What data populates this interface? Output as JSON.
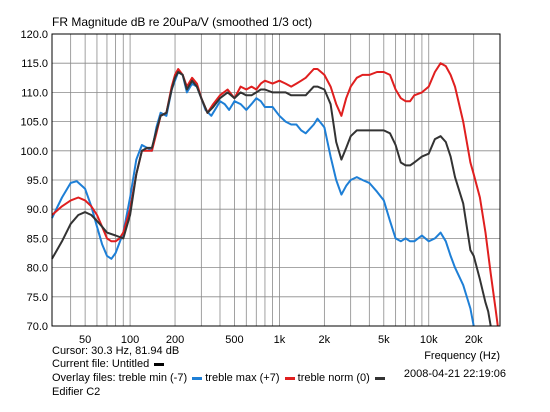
{
  "chart_data": {
    "type": "line",
    "title": "FR Magnitude dB re 20uPa/V (smoothed 1/3 oct)",
    "xlabel": "Frequency (Hz)",
    "ylabel": "",
    "x_scale": "log",
    "xlim": [
      30,
      30000
    ],
    "ylim": [
      70,
      120
    ],
    "grid": true,
    "x_ticks": [
      {
        "value": 50,
        "label": "50"
      },
      {
        "value": 100,
        "label": "100"
      },
      {
        "value": 200,
        "label": "200"
      },
      {
        "value": 500,
        "label": "500"
      },
      {
        "value": 1000,
        "label": "1k"
      },
      {
        "value": 2000,
        "label": "2k"
      },
      {
        "value": 5000,
        "label": "5k"
      },
      {
        "value": 10000,
        "label": "10k"
      },
      {
        "value": 20000,
        "label": "20k"
      }
    ],
    "y_ticks": [
      "120.0",
      "115.0",
      "110.0",
      "105.0",
      "100.0",
      "95.0",
      "90.0",
      "85.0",
      "80.0",
      "75.0",
      "70.0"
    ],
    "series": [
      {
        "name": "treble min (-7)",
        "color": "#1e7fd6",
        "points": [
          [
            30,
            88.5
          ],
          [
            35,
            92
          ],
          [
            40,
            94.5
          ],
          [
            44,
            94.8
          ],
          [
            50,
            93.5
          ],
          [
            55,
            90.5
          ],
          [
            60,
            87
          ],
          [
            65,
            84
          ],
          [
            70,
            82
          ],
          [
            75,
            81.5
          ],
          [
            80,
            82.5
          ],
          [
            90,
            86
          ],
          [
            100,
            92
          ],
          [
            110,
            98.5
          ],
          [
            120,
            101
          ],
          [
            130,
            100.5
          ],
          [
            140,
            100
          ],
          [
            150,
            104
          ],
          [
            160,
            106.5
          ],
          [
            175,
            106
          ],
          [
            190,
            110.5
          ],
          [
            200,
            112
          ],
          [
            210,
            113.5
          ],
          [
            225,
            113
          ],
          [
            240,
            110
          ],
          [
            260,
            111.5
          ],
          [
            280,
            111
          ],
          [
            300,
            109
          ],
          [
            320,
            107
          ],
          [
            350,
            106
          ],
          [
            380,
            107.5
          ],
          [
            400,
            108.5
          ],
          [
            430,
            108
          ],
          [
            460,
            107
          ],
          [
            500,
            108.5
          ],
          [
            550,
            108
          ],
          [
            600,
            107
          ],
          [
            650,
            108
          ],
          [
            700,
            109
          ],
          [
            750,
            108.5
          ],
          [
            800,
            107.5
          ],
          [
            900,
            107.5
          ],
          [
            1000,
            106
          ],
          [
            1100,
            105
          ],
          [
            1200,
            104.5
          ],
          [
            1300,
            104.5
          ],
          [
            1400,
            103.5
          ],
          [
            1500,
            103
          ],
          [
            1700,
            104.5
          ],
          [
            1800,
            105.5
          ],
          [
            2000,
            104
          ],
          [
            2200,
            99
          ],
          [
            2400,
            95
          ],
          [
            2600,
            92.5
          ],
          [
            2800,
            94
          ],
          [
            3000,
            95
          ],
          [
            3300,
            95.5
          ],
          [
            3600,
            95
          ],
          [
            4000,
            94.5
          ],
          [
            4500,
            93
          ],
          [
            5000,
            91.5
          ],
          [
            5500,
            88
          ],
          [
            6000,
            85
          ],
          [
            6500,
            84.5
          ],
          [
            7000,
            85
          ],
          [
            7500,
            84.5
          ],
          [
            8000,
            84.5
          ],
          [
            9000,
            85.5
          ],
          [
            10000,
            84.5
          ],
          [
            11000,
            85
          ],
          [
            12000,
            86
          ],
          [
            13000,
            84.5
          ],
          [
            14000,
            82
          ],
          [
            15000,
            80
          ],
          [
            17000,
            77
          ],
          [
            19000,
            73
          ],
          [
            20000,
            70
          ]
        ]
      },
      {
        "name": "treble max (+7)",
        "color": "#e01f1f",
        "points": [
          [
            30,
            89
          ],
          [
            35,
            90.5
          ],
          [
            40,
            91.5
          ],
          [
            45,
            92
          ],
          [
            50,
            91.5
          ],
          [
            55,
            90.5
          ],
          [
            60,
            89
          ],
          [
            65,
            87
          ],
          [
            70,
            85
          ],
          [
            75,
            84.5
          ],
          [
            80,
            84.5
          ],
          [
            85,
            85
          ],
          [
            90,
            86
          ],
          [
            100,
            90
          ],
          [
            110,
            96
          ],
          [
            120,
            100
          ],
          [
            130,
            100
          ],
          [
            140,
            100
          ],
          [
            150,
            103
          ],
          [
            160,
            106
          ],
          [
            175,
            106.5
          ],
          [
            190,
            111
          ],
          [
            200,
            113
          ],
          [
            210,
            114
          ],
          [
            225,
            113
          ],
          [
            240,
            111
          ],
          [
            260,
            112.5
          ],
          [
            280,
            111.5
          ],
          [
            300,
            109
          ],
          [
            330,
            106.5
          ],
          [
            360,
            108
          ],
          [
            400,
            109.5
          ],
          [
            450,
            110.5
          ],
          [
            500,
            109
          ],
          [
            550,
            111
          ],
          [
            600,
            110.5
          ],
          [
            650,
            111
          ],
          [
            700,
            110.5
          ],
          [
            750,
            111.5
          ],
          [
            800,
            112
          ],
          [
            900,
            111.5
          ],
          [
            1000,
            112
          ],
          [
            1100,
            111.5
          ],
          [
            1200,
            111
          ],
          [
            1300,
            111.5
          ],
          [
            1400,
            112
          ],
          [
            1500,
            112.5
          ],
          [
            1700,
            114
          ],
          [
            1800,
            114
          ],
          [
            2000,
            113
          ],
          [
            2200,
            111
          ],
          [
            2400,
            108
          ],
          [
            2600,
            106
          ],
          [
            2800,
            109
          ],
          [
            3000,
            111
          ],
          [
            3300,
            112.5
          ],
          [
            3600,
            113
          ],
          [
            4000,
            113
          ],
          [
            4500,
            113.5
          ],
          [
            5000,
            113.5
          ],
          [
            5500,
            113
          ],
          [
            6000,
            110.5
          ],
          [
            6500,
            109
          ],
          [
            7000,
            108.5
          ],
          [
            7500,
            108.5
          ],
          [
            8000,
            109.5
          ],
          [
            9000,
            110
          ],
          [
            10000,
            111
          ],
          [
            11000,
            113.5
          ],
          [
            12000,
            115
          ],
          [
            13000,
            114.5
          ],
          [
            14000,
            113
          ],
          [
            15000,
            111
          ],
          [
            17000,
            105
          ],
          [
            19000,
            98
          ],
          [
            20000,
            96
          ],
          [
            22000,
            92
          ],
          [
            24000,
            86
          ],
          [
            26000,
            79
          ],
          [
            28000,
            73
          ],
          [
            29000,
            70
          ]
        ]
      },
      {
        "name": "treble norm (0)",
        "color": "#333333",
        "points": [
          [
            30,
            81.5
          ],
          [
            35,
            84.5
          ],
          [
            40,
            87.5
          ],
          [
            45,
            89
          ],
          [
            50,
            89.5
          ],
          [
            55,
            89
          ],
          [
            60,
            88
          ],
          [
            65,
            87
          ],
          [
            70,
            86
          ],
          [
            80,
            85.5
          ],
          [
            90,
            85
          ],
          [
            100,
            89
          ],
          [
            110,
            96
          ],
          [
            120,
            100
          ],
          [
            130,
            100.5
          ],
          [
            140,
            100.5
          ],
          [
            150,
            103.5
          ],
          [
            160,
            106
          ],
          [
            175,
            106.5
          ],
          [
            190,
            110.5
          ],
          [
            200,
            112.5
          ],
          [
            210,
            113.5
          ],
          [
            225,
            113
          ],
          [
            240,
            110.5
          ],
          [
            260,
            112
          ],
          [
            280,
            111
          ],
          [
            300,
            109
          ],
          [
            330,
            106.5
          ],
          [
            360,
            107.5
          ],
          [
            400,
            109
          ],
          [
            450,
            110
          ],
          [
            500,
            109
          ],
          [
            550,
            110
          ],
          [
            600,
            109.5
          ],
          [
            650,
            109.5
          ],
          [
            700,
            110
          ],
          [
            750,
            110.5
          ],
          [
            800,
            110.5
          ],
          [
            900,
            110
          ],
          [
            1000,
            110
          ],
          [
            1100,
            110
          ],
          [
            1200,
            109.5
          ],
          [
            1300,
            109.5
          ],
          [
            1400,
            109.5
          ],
          [
            1500,
            109.5
          ],
          [
            1700,
            111
          ],
          [
            1800,
            111
          ],
          [
            2000,
            110.5
          ],
          [
            2200,
            108
          ],
          [
            2400,
            101.5
          ],
          [
            2600,
            98.5
          ],
          [
            2800,
            100.5
          ],
          [
            3000,
            102.5
          ],
          [
            3300,
            103.5
          ],
          [
            3600,
            103.5
          ],
          [
            4000,
            103.5
          ],
          [
            4500,
            103.5
          ],
          [
            5000,
            103.5
          ],
          [
            5500,
            103
          ],
          [
            6000,
            101
          ],
          [
            6500,
            98
          ],
          [
            7000,
            97.5
          ],
          [
            7500,
            97.5
          ],
          [
            8000,
            98
          ],
          [
            9000,
            99
          ],
          [
            10000,
            99.5
          ],
          [
            11000,
            102
          ],
          [
            12000,
            102.5
          ],
          [
            13000,
            101.5
          ],
          [
            14000,
            99
          ],
          [
            15000,
            95.5
          ],
          [
            17000,
            91
          ],
          [
            19000,
            83
          ],
          [
            20000,
            82
          ],
          [
            22000,
            78
          ],
          [
            24000,
            74
          ],
          [
            25000,
            72.5
          ],
          [
            26000,
            70
          ]
        ]
      }
    ]
  },
  "footer": {
    "cursor": "Cursor: 30.3 Hz, 81.94 dB",
    "frequency_label": "Frequency (Hz)",
    "current_file_label": "Current file: Untitled",
    "datetime": "2008-04-21    22:19:06",
    "overlay_files_label": "Overlay files:",
    "overlay_items": [
      {
        "text": "treble min (-7)",
        "color": "#1e7fd6"
      },
      {
        "text": "treble max (+7)",
        "color": "#e01f1f"
      },
      {
        "text": "treble norm (0)",
        "color": "#333333"
      }
    ],
    "subtitle": "Edifier C2"
  }
}
